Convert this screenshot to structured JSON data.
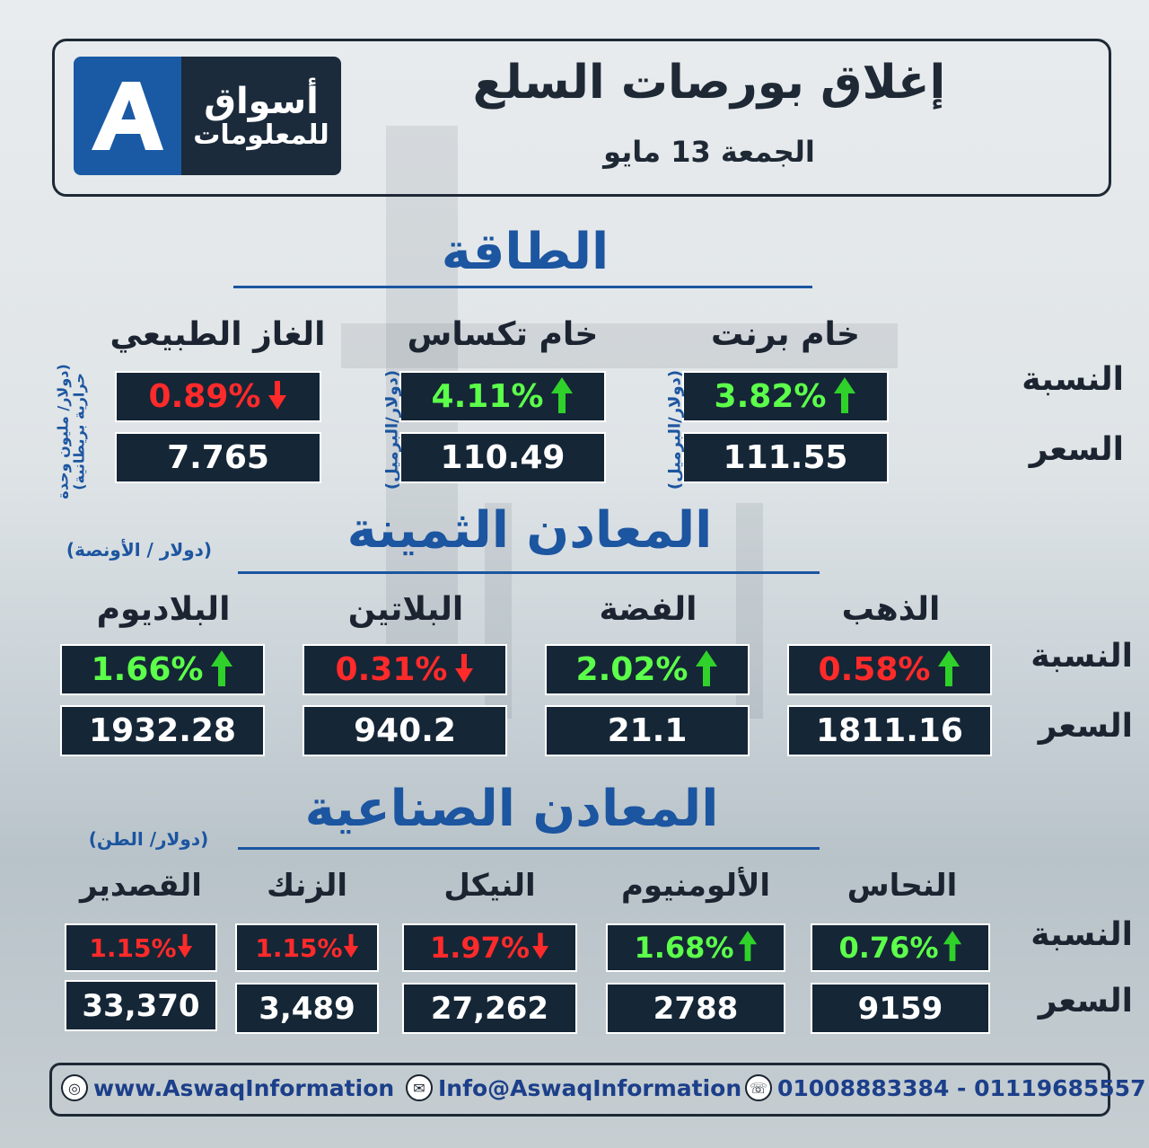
{
  "header": {
    "logo_line1": "أسواق",
    "logo_line2": "للمعلومات",
    "logo_letter": "A",
    "title": "إغلاق بورصات السلع",
    "date": "الجمعة  13 مايو"
  },
  "labels": {
    "pct": "النسبة",
    "price": "السعر"
  },
  "energy": {
    "title": "الطاقة",
    "items": [
      {
        "name": "خام برنت",
        "pct": "3.82%",
        "dir": "up",
        "price": "111.55",
        "unit": "(دولار/البرميل)"
      },
      {
        "name": "خام تكساس",
        "pct": "4.11%",
        "dir": "up",
        "price": "110.49",
        "unit": "(دولار/البرميل)"
      },
      {
        "name": "الغاز الطبيعي",
        "pct": "0.89%",
        "dir": "down",
        "price": "7.765",
        "unit": "(دولار/ مليون وحدة حرارية بريطانية)"
      }
    ]
  },
  "precious": {
    "title": "المعادن الثمينة",
    "unit": "(دولار / الأونصة)",
    "items": [
      {
        "name": "الذهب",
        "pct": "0.58%",
        "dir": "up",
        "pct_color": "red",
        "price": "1811.16"
      },
      {
        "name": "الفضة",
        "pct": "2.02%",
        "dir": "up",
        "pct_color": "green",
        "price": "21.1"
      },
      {
        "name": "البلاتين",
        "pct": "0.31%",
        "dir": "down",
        "pct_color": "red",
        "price": "940.2"
      },
      {
        "name": "البلاديوم",
        "pct": "1.66%",
        "dir": "up",
        "pct_color": "green",
        "price": "1932.28"
      }
    ]
  },
  "industrial": {
    "title": "المعادن الصناعية",
    "unit": "(دولار/ الطن)",
    "items": [
      {
        "name": "النحاس",
        "pct": "0.76%",
        "dir": "up",
        "price": "9159"
      },
      {
        "name": "الألومنيوم",
        "pct": "1.68%",
        "dir": "up",
        "price": "2788"
      },
      {
        "name": "النيكل",
        "pct": "1.97%",
        "dir": "down",
        "price": "27,262"
      },
      {
        "name": "الزنك",
        "pct": "1.15%",
        "dir": "down",
        "price": "3,489"
      },
      {
        "name": "القصدير",
        "pct": "1.15%",
        "dir": "down",
        "price": "33,370"
      }
    ]
  },
  "footer": {
    "website": "www.AswaqInformation",
    "email": "Info@AswaqInformation",
    "phones": "01008883384 - 01119685557"
  },
  "colors": {
    "up": "#5cff4a",
    "down": "#ff2a2a",
    "box": "#152636",
    "accent": "#1c55a0"
  },
  "icons": {
    "up": "arrow-up-icon",
    "down": "arrow-down-icon",
    "web": "globe-icon",
    "mail": "mail-icon",
    "phone": "phone-icon"
  }
}
